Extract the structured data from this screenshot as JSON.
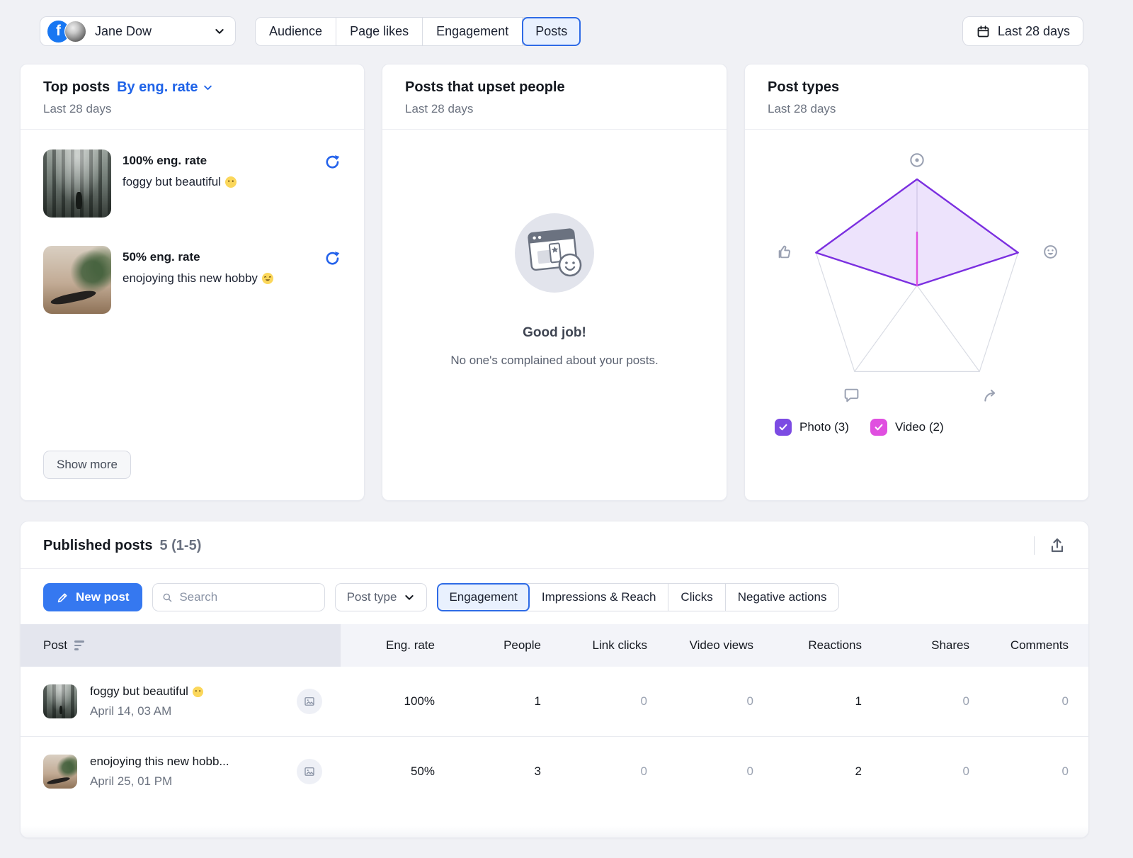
{
  "header": {
    "account_name": "Jane Dow",
    "nav_tabs": [
      {
        "label": "Audience"
      },
      {
        "label": "Page likes"
      },
      {
        "label": "Engagement"
      },
      {
        "label": "Posts"
      }
    ],
    "active_nav_tab": "Posts",
    "date_range_label": "Last 28 days"
  },
  "top_posts_card": {
    "title": "Top posts",
    "sort_label": "By eng. rate",
    "subtitle": "Last 28 days",
    "posts": [
      {
        "rate": "100% eng. rate",
        "caption": "foggy but beautiful",
        "emoji": "face-without-mouth"
      },
      {
        "rate": "50% eng. rate",
        "caption": "enojoying this new hobby",
        "emoji": "hugging-face"
      }
    ],
    "show_more_label": "Show more"
  },
  "upset_card": {
    "title": "Posts that upset people",
    "subtitle": "Last 28 days",
    "empty_title": "Good job!",
    "empty_message": "No one's complained about your posts."
  },
  "post_types_card": {
    "title": "Post types",
    "subtitle": "Last 28 days",
    "legend": [
      {
        "label": "Photo (3)",
        "color": "#7C4BE3"
      },
      {
        "label": "Video (2)",
        "color": "#E04FE0"
      }
    ]
  },
  "chart_data": {
    "type": "radar",
    "axes": [
      "views",
      "reactions",
      "shares",
      "comments",
      "likes"
    ],
    "axis_icons": [
      "eye-icon",
      "smiley-icon",
      "share-icon",
      "comment-icon",
      "thumb-up-icon"
    ],
    "max": 1,
    "grid_color": "#D9DCE4",
    "legend_position": "bottom",
    "series": [
      {
        "name": "Photo",
        "count": 3,
        "color": "#7B2FE0",
        "fill": "rgba(124,58,237,0.14)",
        "values": [
          1,
          1,
          0,
          0,
          1
        ]
      },
      {
        "name": "Video",
        "count": 2,
        "color": "#E04FE0",
        "fill": "none",
        "values": [
          0.5,
          0,
          0,
          0,
          0
        ]
      }
    ]
  },
  "published": {
    "title": "Published posts",
    "count_label": "5 (1-5)",
    "new_post_label": "New post",
    "search_placeholder": "Search",
    "post_type_label": "Post type",
    "metric_tabs": [
      {
        "label": "Engagement"
      },
      {
        "label": "Impressions & Reach"
      },
      {
        "label": "Clicks"
      },
      {
        "label": "Negative actions"
      }
    ],
    "active_metric_tab": "Engagement",
    "columns": [
      "Post",
      "Eng. rate",
      "People",
      "Link clicks",
      "Video views",
      "Reactions",
      "Shares",
      "Comments"
    ],
    "rows": [
      {
        "title": "foggy but beautiful",
        "emoji": "face-without-mouth",
        "date": "April 14, 03 AM",
        "media_type": "image",
        "eng_rate": "100%",
        "people": "1",
        "link_clicks": "0",
        "video_views": "0",
        "reactions": "1",
        "shares": "0",
        "comments": "0"
      },
      {
        "title": "enojoying this new hobb...",
        "emoji": "",
        "date": "April 25, 01 PM",
        "media_type": "image",
        "eng_rate": "50%",
        "people": "3",
        "link_clicks": "0",
        "video_views": "0",
        "reactions": "2",
        "shares": "0",
        "comments": "0"
      }
    ]
  }
}
